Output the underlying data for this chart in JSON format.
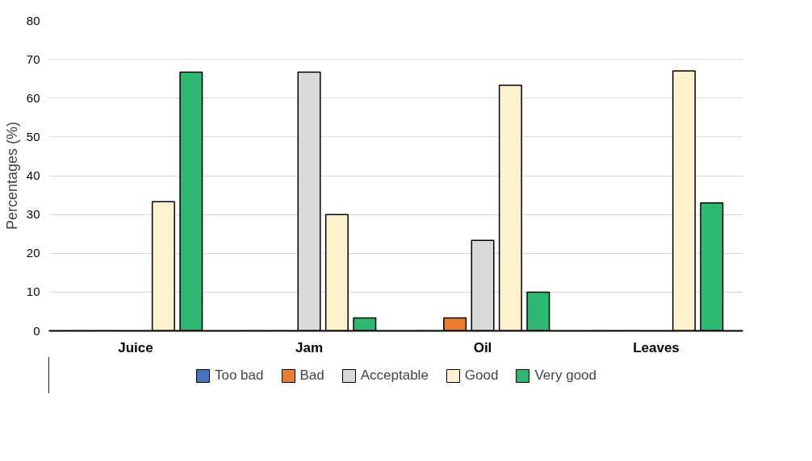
{
  "chart_data": {
    "type": "bar",
    "ylabel": "Percentages (%)",
    "categories": [
      "Juice",
      "Jam",
      "Oil",
      "Leaves"
    ],
    "series": [
      {
        "name": "Too bad",
        "color": "#4472c4",
        "values": [
          0,
          0,
          0,
          0
        ]
      },
      {
        "name": "Bad",
        "color": "#ed7d31",
        "values": [
          0,
          0,
          3.3,
          0
        ]
      },
      {
        "name": "Acceptable",
        "color": "#d9d9d9",
        "values": [
          0,
          66.7,
          23.3,
          0
        ]
      },
      {
        "name": "Good",
        "color": "#fff2cc",
        "values": [
          33.3,
          30,
          63.3,
          67
        ]
      },
      {
        "name": "Very good",
        "color": "#2eb872",
        "values": [
          66.7,
          3.3,
          10,
          33
        ]
      }
    ],
    "ylim": [
      0,
      80
    ],
    "yticks": [
      0,
      10,
      20,
      30,
      40,
      50,
      60,
      70,
      80
    ],
    "grid": "y",
    "legend": "bottom"
  }
}
